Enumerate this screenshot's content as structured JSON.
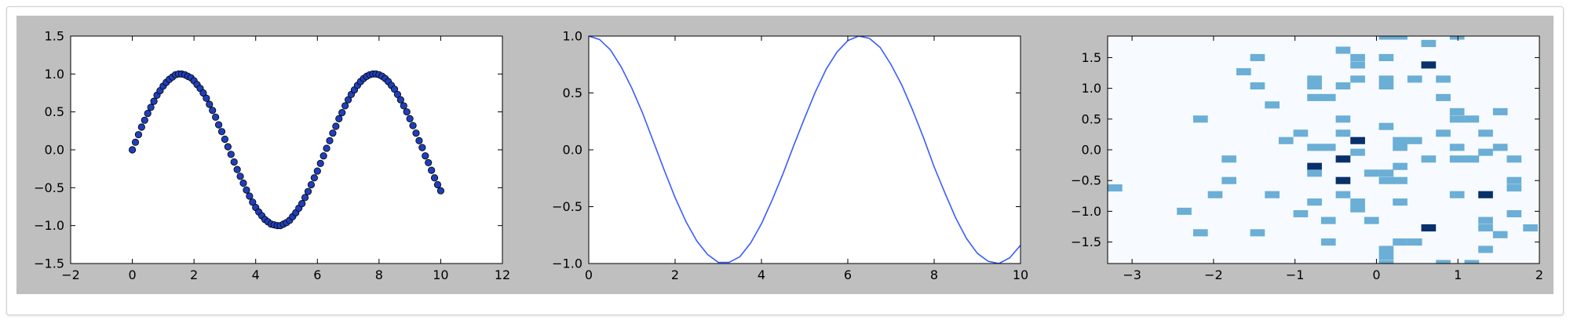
{
  "colors": {
    "figure_background": "#bfbfbf",
    "axes_background": "#ffffff",
    "scatter_marker": "#1f3fb8",
    "line": "#3a5bff",
    "heatmap_background": "#f7fbff",
    "heatmap_low": "#6baed6",
    "heatmap_high": "#08306b"
  },
  "chart_data": [
    {
      "type": "scatter",
      "title": "",
      "xlabel": "",
      "ylabel": "",
      "xlim": [
        -2,
        12
      ],
      "ylim": [
        -1.5,
        1.5
      ],
      "xticks": [
        -2,
        0,
        2,
        4,
        6,
        8,
        10,
        12
      ],
      "xtick_labels": [
        "−2",
        "0",
        "2",
        "4",
        "6",
        "8",
        "10",
        "12"
      ],
      "yticks": [
        -1.5,
        -1.0,
        -0.5,
        0.0,
        0.5,
        1.0,
        1.5
      ],
      "ytick_labels": [
        "−1.5",
        "−1.0",
        "−0.5",
        "0.0",
        "0.5",
        "1.0",
        "1.5"
      ],
      "grid": false,
      "x": [
        0.0,
        0.1,
        0.2,
        0.3,
        0.4,
        0.5,
        0.6,
        0.7,
        0.8,
        0.9,
        1.0,
        1.1,
        1.2,
        1.3,
        1.4,
        1.5,
        1.6,
        1.7,
        1.8,
        1.9,
        2.0,
        2.1,
        2.2,
        2.3,
        2.4,
        2.5,
        2.6,
        2.7,
        2.8,
        2.9,
        3.0,
        3.1,
        3.2,
        3.3,
        3.4,
        3.5,
        3.6,
        3.7,
        3.8,
        3.9,
        4.0,
        4.1,
        4.2,
        4.3,
        4.4,
        4.5,
        4.6,
        4.7,
        4.8,
        4.9,
        5.0,
        5.1,
        5.2,
        5.3,
        5.4,
        5.5,
        5.6,
        5.7,
        5.8,
        5.9,
        6.0,
        6.1,
        6.2,
        6.3,
        6.4,
        6.5,
        6.6,
        6.7,
        6.8,
        6.9,
        7.0,
        7.1,
        7.2,
        7.3,
        7.4,
        7.5,
        7.6,
        7.7,
        7.8,
        7.9,
        8.0,
        8.1,
        8.2,
        8.3,
        8.4,
        8.5,
        8.6,
        8.7,
        8.8,
        8.9,
        9.0,
        9.1,
        9.2,
        9.3,
        9.4,
        9.5,
        9.6,
        9.7,
        9.8,
        9.9,
        10.0
      ],
      "y": [
        0.0,
        0.1,
        0.2,
        0.3,
        0.39,
        0.48,
        0.56,
        0.64,
        0.72,
        0.78,
        0.84,
        0.89,
        0.93,
        0.96,
        0.99,
        1.0,
        1.0,
        0.99,
        0.97,
        0.95,
        0.91,
        0.86,
        0.81,
        0.75,
        0.68,
        0.6,
        0.52,
        0.43,
        0.33,
        0.24,
        0.14,
        0.04,
        -0.06,
        -0.16,
        -0.26,
        -0.35,
        -0.44,
        -0.53,
        -0.61,
        -0.69,
        -0.76,
        -0.82,
        -0.87,
        -0.92,
        -0.95,
        -0.98,
        -0.99,
        -1.0,
        -1.0,
        -0.98,
        -0.96,
        -0.93,
        -0.88,
        -0.83,
        -0.77,
        -0.71,
        -0.63,
        -0.55,
        -0.46,
        -0.37,
        -0.28,
        -0.18,
        -0.08,
        0.02,
        0.12,
        0.22,
        0.31,
        0.41,
        0.49,
        0.58,
        0.66,
        0.73,
        0.79,
        0.85,
        0.9,
        0.94,
        0.97,
        0.99,
        1.0,
        1.0,
        0.99,
        0.97,
        0.94,
        0.9,
        0.85,
        0.8,
        0.73,
        0.66,
        0.58,
        0.5,
        0.41,
        0.32,
        0.22,
        0.12,
        0.03,
        -0.08,
        -0.17,
        -0.27,
        -0.37,
        -0.46,
        -0.54
      ]
    },
    {
      "type": "line",
      "title": "",
      "xlabel": "",
      "ylabel": "",
      "xlim": [
        0,
        10
      ],
      "ylim": [
        -1.0,
        1.0
      ],
      "xticks": [
        0,
        2,
        4,
        6,
        8,
        10
      ],
      "xtick_labels": [
        "0",
        "2",
        "4",
        "6",
        "8",
        "10"
      ],
      "yticks": [
        -1.0,
        -0.5,
        0.0,
        0.5,
        1.0
      ],
      "ytick_labels": [
        "−1.0",
        "−0.5",
        "0.0",
        "0.5",
        "1.0"
      ],
      "grid": false,
      "x": [
        0,
        0.25,
        0.5,
        0.75,
        1,
        1.25,
        1.5,
        1.75,
        2,
        2.25,
        2.5,
        2.75,
        3,
        3.25,
        3.5,
        3.75,
        4,
        4.25,
        4.5,
        4.75,
        5,
        5.25,
        5.5,
        5.75,
        6,
        6.25,
        6.5,
        6.75,
        7,
        7.25,
        7.5,
        7.75,
        8,
        8.25,
        8.5,
        8.75,
        9,
        9.25,
        9.5,
        9.75,
        10
      ],
      "y": [
        1.0,
        0.97,
        0.88,
        0.73,
        0.54,
        0.32,
        0.07,
        -0.18,
        -0.42,
        -0.63,
        -0.8,
        -0.92,
        -0.99,
        -0.99,
        -0.94,
        -0.82,
        -0.65,
        -0.44,
        -0.21,
        0.04,
        0.28,
        0.51,
        0.71,
        0.86,
        0.96,
        1.0,
        0.98,
        0.9,
        0.75,
        0.57,
        0.35,
        0.11,
        -0.15,
        -0.38,
        -0.6,
        -0.78,
        -0.91,
        -0.98,
        -1.0,
        -0.95,
        -0.84
      ]
    },
    {
      "type": "heatmap",
      "title": "",
      "xlabel": "",
      "ylabel": "",
      "xlim": [
        -3.3,
        2.0
      ],
      "ylim": [
        -1.85,
        1.85
      ],
      "xticks": [
        -3,
        -2,
        -1,
        0,
        1,
        2
      ],
      "xtick_labels": [
        "−3",
        "−2",
        "−1",
        "0",
        "1",
        "2"
      ],
      "yticks": [
        -1.5,
        -1.0,
        -0.5,
        0.0,
        0.5,
        1.0,
        1.5
      ],
      "ytick_labels": [
        "−1.5",
        "−1.0",
        "−0.5",
        "0.0",
        "0.5",
        "1.0",
        "1.5"
      ],
      "grid": false,
      "bin_width": [
        0.18,
        0.116
      ],
      "cells": [
        {
          "x": -3.3,
          "y": -0.62,
          "count": 1
        },
        {
          "x": -2.45,
          "y": -1.0,
          "count": 1
        },
        {
          "x": -2.25,
          "y": -1.35,
          "count": 1
        },
        {
          "x": -2.25,
          "y": 0.5,
          "count": 1
        },
        {
          "x": -2.07,
          "y": -0.73,
          "count": 1
        },
        {
          "x": -1.9,
          "y": -0.5,
          "count": 1
        },
        {
          "x": -1.9,
          "y": -0.15,
          "count": 1
        },
        {
          "x": -1.72,
          "y": 1.27,
          "count": 1
        },
        {
          "x": -1.55,
          "y": 1.5,
          "count": 1
        },
        {
          "x": -1.55,
          "y": 1.04,
          "count": 1
        },
        {
          "x": -1.55,
          "y": -1.35,
          "count": 1
        },
        {
          "x": -1.37,
          "y": 0.73,
          "count": 1
        },
        {
          "x": -1.37,
          "y": -0.73,
          "count": 1
        },
        {
          "x": -1.2,
          "y": 0.15,
          "count": 1
        },
        {
          "x": -1.02,
          "y": 0.27,
          "count": 1
        },
        {
          "x": -1.02,
          "y": -1.04,
          "count": 1
        },
        {
          "x": -0.85,
          "y": 1.15,
          "count": 1
        },
        {
          "x": -0.85,
          "y": 1.04,
          "count": 1
        },
        {
          "x": -0.85,
          "y": 0.85,
          "count": 1
        },
        {
          "x": -0.85,
          "y": 0.04,
          "count": 1
        },
        {
          "x": -0.85,
          "y": -0.27,
          "count": 2
        },
        {
          "x": -0.85,
          "y": -0.38,
          "count": 1
        },
        {
          "x": -0.85,
          "y": -0.85,
          "count": 1
        },
        {
          "x": -0.68,
          "y": 0.85,
          "count": 1
        },
        {
          "x": -0.68,
          "y": 0.04,
          "count": 1
        },
        {
          "x": -0.68,
          "y": -1.15,
          "count": 1
        },
        {
          "x": -0.68,
          "y": -1.5,
          "count": 1
        },
        {
          "x": -0.5,
          "y": 1.62,
          "count": 1
        },
        {
          "x": -0.5,
          "y": 1.04,
          "count": 1
        },
        {
          "x": -0.5,
          "y": 0.5,
          "count": 1
        },
        {
          "x": -0.5,
          "y": 0.27,
          "count": 1
        },
        {
          "x": -0.5,
          "y": -0.15,
          "count": 2
        },
        {
          "x": -0.5,
          "y": -0.5,
          "count": 2
        },
        {
          "x": -0.5,
          "y": -0.73,
          "count": 1
        },
        {
          "x": -0.32,
          "y": 1.5,
          "count": 1
        },
        {
          "x": -0.32,
          "y": 1.38,
          "count": 1
        },
        {
          "x": -0.32,
          "y": 1.15,
          "count": 1
        },
        {
          "x": -0.32,
          "y": 0.15,
          "count": 2
        },
        {
          "x": -0.32,
          "y": -0.04,
          "count": 1
        },
        {
          "x": -0.32,
          "y": -0.85,
          "count": 1
        },
        {
          "x": -0.32,
          "y": -0.96,
          "count": 1
        },
        {
          "x": -0.15,
          "y": -0.38,
          "count": 1
        },
        {
          "x": -0.15,
          "y": -1.15,
          "count": 1
        },
        {
          "x": 0.03,
          "y": 1.85,
          "count": 1
        },
        {
          "x": 0.03,
          "y": 1.5,
          "count": 1
        },
        {
          "x": 0.03,
          "y": 1.15,
          "count": 1
        },
        {
          "x": 0.03,
          "y": 1.04,
          "count": 1
        },
        {
          "x": 0.03,
          "y": 0.38,
          "count": 1
        },
        {
          "x": 0.03,
          "y": -0.38,
          "count": 1
        },
        {
          "x": 0.03,
          "y": -0.5,
          "count": 1
        },
        {
          "x": 0.03,
          "y": -1.62,
          "count": 1
        },
        {
          "x": 0.03,
          "y": -1.73,
          "count": 1
        },
        {
          "x": 0.03,
          "y": -1.85,
          "count": 1
        },
        {
          "x": 0.2,
          "y": 1.85,
          "count": 1
        },
        {
          "x": 0.2,
          "y": 0.15,
          "count": 1
        },
        {
          "x": 0.2,
          "y": 0.04,
          "count": 1
        },
        {
          "x": 0.2,
          "y": -0.27,
          "count": 1
        },
        {
          "x": 0.2,
          "y": -0.5,
          "count": 1
        },
        {
          "x": 0.2,
          "y": -0.85,
          "count": 1
        },
        {
          "x": 0.2,
          "y": -1.5,
          "count": 1
        },
        {
          "x": 0.38,
          "y": 1.15,
          "count": 1
        },
        {
          "x": 0.38,
          "y": 0.15,
          "count": 1
        },
        {
          "x": 0.38,
          "y": -1.5,
          "count": 1
        },
        {
          "x": 0.55,
          "y": 1.73,
          "count": 1
        },
        {
          "x": 0.55,
          "y": 1.38,
          "count": 2
        },
        {
          "x": 0.55,
          "y": -0.15,
          "count": 1
        },
        {
          "x": 0.55,
          "y": -1.27,
          "count": 2
        },
        {
          "x": 0.73,
          "y": 1.15,
          "count": 1
        },
        {
          "x": 0.73,
          "y": 0.85,
          "count": 1
        },
        {
          "x": 0.73,
          "y": 0.27,
          "count": 1
        },
        {
          "x": 0.73,
          "y": -1.85,
          "count": 1
        },
        {
          "x": 0.9,
          "y": 1.85,
          "count": 1
        },
        {
          "x": 0.9,
          "y": 0.62,
          "count": 1
        },
        {
          "x": 0.9,
          "y": 0.5,
          "count": 1
        },
        {
          "x": 0.9,
          "y": 0.04,
          "count": 1
        },
        {
          "x": 0.9,
          "y": -0.15,
          "count": 1
        },
        {
          "x": 0.9,
          "y": -0.73,
          "count": 1
        },
        {
          "x": 1.08,
          "y": 0.5,
          "count": 1
        },
        {
          "x": 1.08,
          "y": -0.15,
          "count": 1
        },
        {
          "x": 1.08,
          "y": -1.85,
          "count": 1
        },
        {
          "x": 1.25,
          "y": 0.27,
          "count": 1
        },
        {
          "x": 1.25,
          "y": -0.04,
          "count": 1
        },
        {
          "x": 1.25,
          "y": -0.73,
          "count": 2
        },
        {
          "x": 1.25,
          "y": -1.15,
          "count": 1
        },
        {
          "x": 1.25,
          "y": -1.27,
          "count": 1
        },
        {
          "x": 1.25,
          "y": -1.62,
          "count": 1
        },
        {
          "x": 1.43,
          "y": 0.62,
          "count": 1
        },
        {
          "x": 1.43,
          "y": 0.04,
          "count": 1
        },
        {
          "x": 1.43,
          "y": -1.38,
          "count": 1
        },
        {
          "x": 1.6,
          "y": -0.15,
          "count": 1
        },
        {
          "x": 1.6,
          "y": -0.5,
          "count": 1
        },
        {
          "x": 1.6,
          "y": -0.62,
          "count": 1
        },
        {
          "x": 1.6,
          "y": -1.04,
          "count": 1
        },
        {
          "x": 1.8,
          "y": -1.27,
          "count": 1
        }
      ]
    }
  ]
}
